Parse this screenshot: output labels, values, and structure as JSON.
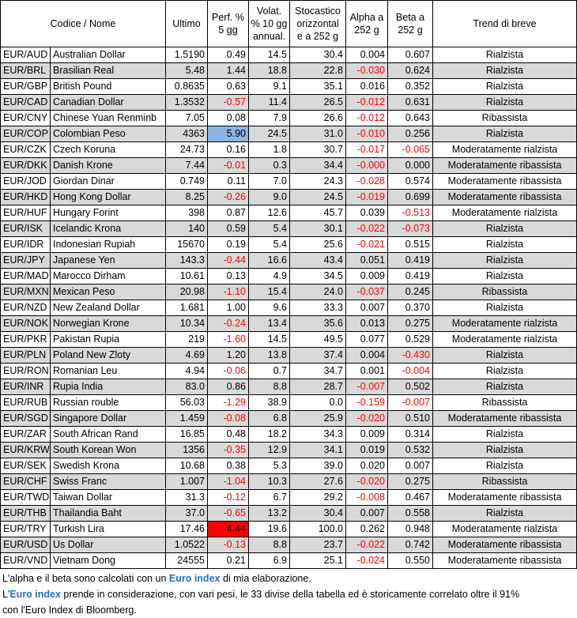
{
  "columns": {
    "name": "Codice / Nome",
    "last": "Ultimo",
    "perf_l1": "Perf. %",
    "perf_l2": "5 gg",
    "vol_l1": "Volat.",
    "vol_l2": "% 10 gg",
    "vol_l3": "annual.",
    "stoc_l1": "Stocastico",
    "stoc_l2": "orizzontal",
    "stoc_l3": "e a 252 g",
    "alpha_l1": "Alpha a",
    "alpha_l2": "252 g",
    "beta_l1": "Beta a",
    "beta_l2": "252 g",
    "trend": "Trend di breve"
  },
  "rows": [
    {
      "code": "EUR/AUD",
      "name": "Australian Dollar",
      "last": "1.5190",
      "perf": "0.49",
      "vol": "14.5",
      "stoc": "30.4",
      "alpha": "0.004",
      "beta": "0.607",
      "trend": "Rialzista"
    },
    {
      "code": "EUR/BRL",
      "name": "Brasilian Real",
      "last": "5.48",
      "perf": "1.44",
      "vol": "18.8",
      "stoc": "22.8",
      "alpha": "-0.030",
      "beta": "0.624",
      "trend": "Rialzista"
    },
    {
      "code": "EUR/GBP",
      "name": "British Pound",
      "last": "0.8635",
      "perf": "0.63",
      "vol": "9.1",
      "stoc": "35.1",
      "alpha": "0.016",
      "beta": "0.352",
      "trend": "Rialzista"
    },
    {
      "code": "EUR/CAD",
      "name": "Canadian Dollar",
      "last": "1.3532",
      "perf": "-0.57",
      "vol": "11.4",
      "stoc": "26.5",
      "alpha": "-0.012",
      "beta": "0.631",
      "trend": "Rialzista"
    },
    {
      "code": "EUR/CNY",
      "name": "Chinese Yuan Renminb",
      "last": "7.05",
      "perf": "0.08",
      "vol": "7.9",
      "stoc": "26.6",
      "alpha": "-0.012",
      "beta": "0.643",
      "trend": "Ribassista"
    },
    {
      "code": "EUR/COP",
      "name": "Colombian Peso",
      "last": "4363",
      "perf": "5.90",
      "vol": "24.5",
      "stoc": "31.0",
      "alpha": "-0.010",
      "beta": "0.256",
      "trend": "Rialzista",
      "perf_hl": "blue"
    },
    {
      "code": "EUR/CZK",
      "name": "Czech Koruna",
      "last": "24.73",
      "perf": "0.16",
      "vol": "1.8",
      "stoc": "30.7",
      "alpha": "-0.017",
      "beta": "-0.065",
      "trend": "Moderatamente rialzista"
    },
    {
      "code": "EUR/DKK",
      "name": "Danish Krone",
      "last": "7.44",
      "perf": "-0.01",
      "vol": "0.3",
      "stoc": "34.4",
      "alpha": "-0.000",
      "beta": "0.000",
      "trend": "Moderatamente ribassista"
    },
    {
      "code": "EUR/JOD",
      "name": "Giordan Dinar",
      "last": "0.749",
      "perf": "0.11",
      "vol": "7.0",
      "stoc": "24.3",
      "alpha": "-0.028",
      "beta": "0.574",
      "trend": "Moderatamente ribassista"
    },
    {
      "code": "EUR/HKD",
      "name": "Hong Kong Dollar",
      "last": "8.25",
      "perf": "-0.26",
      "vol": "9.0",
      "stoc": "24.5",
      "alpha": "-0.019",
      "beta": "0.699",
      "trend": "Moderatamente ribassista"
    },
    {
      "code": "EUR/HUF",
      "name": "Hungary Forint",
      "last": "398",
      "perf": "0.87",
      "vol": "12.6",
      "stoc": "45.7",
      "alpha": "0.039",
      "beta": "-0.513",
      "trend": "Moderatamente rialzista"
    },
    {
      "code": "EUR/ISK",
      "name": "Icelandic Krona",
      "last": "140",
      "perf": "0.59",
      "vol": "5.4",
      "stoc": "30.1",
      "alpha": "-0.022",
      "beta": "-0.073",
      "trend": "Rialzista"
    },
    {
      "code": "EUR/IDR",
      "name": "Indonesian Rupiah",
      "last": "15670",
      "perf": "0.19",
      "vol": "5.4",
      "stoc": "25.6",
      "alpha": "-0.021",
      "beta": "0.515",
      "trend": "Rialzista"
    },
    {
      "code": "EUR/JPY",
      "name": "Japanese Yen",
      "last": "143.3",
      "perf": "-0.44",
      "vol": "16.6",
      "stoc": "43.4",
      "alpha": "0.051",
      "beta": "0.419",
      "trend": "Rialzista"
    },
    {
      "code": "EUR/MAD",
      "name": "Marocco Dirham",
      "last": "10.61",
      "perf": "0.13",
      "vol": "4.9",
      "stoc": "34.5",
      "alpha": "0.009",
      "beta": "0.419",
      "trend": "Rialzista"
    },
    {
      "code": "EUR/MXN",
      "name": "Mexican Peso",
      "last": "20.98",
      "perf": "-1.10",
      "vol": "15.4",
      "stoc": "24.0",
      "alpha": "-0.037",
      "beta": "0.245",
      "trend": "Ribassista"
    },
    {
      "code": "EUR/NZD",
      "name": "New Zealand Dollar",
      "last": "1.681",
      "perf": "1.00",
      "vol": "9.6",
      "stoc": "33.3",
      "alpha": "0.007",
      "beta": "0.370",
      "trend": "Rialzista"
    },
    {
      "code": "EUR/NOK",
      "name": "Norwegian Krone",
      "last": "10.34",
      "perf": "-0.24",
      "vol": "13.4",
      "stoc": "35.6",
      "alpha": "0.013",
      "beta": "0.275",
      "trend": "Moderatamente rialzista"
    },
    {
      "code": "EUR/PKR",
      "name": "Pakistan Rupia",
      "last": "219",
      "perf": "-1.60",
      "vol": "14.5",
      "stoc": "49.5",
      "alpha": "0.077",
      "beta": "0.529",
      "trend": "Moderatamente rialzista"
    },
    {
      "code": "EUR/PLN",
      "name": "Poland New Zloty",
      "last": "4.69",
      "perf": "1.20",
      "vol": "13.8",
      "stoc": "37.4",
      "alpha": "0.004",
      "beta": "-0.430",
      "trend": "Rialzista"
    },
    {
      "code": "EUR/RON",
      "name": "Romanian Leu",
      "last": "4.94",
      "perf": "-0.06",
      "vol": "0.7",
      "stoc": "34.7",
      "alpha": "0.001",
      "beta": "-0.004",
      "trend": "Rialzista"
    },
    {
      "code": "EUR/INR",
      "name": "Rupia India",
      "last": "83.0",
      "perf": "0.86",
      "vol": "8.8",
      "stoc": "28.7",
      "alpha": "-0.007",
      "beta": "0.502",
      "trend": "Rialzista"
    },
    {
      "code": "EUR/RUB",
      "name": "Russian rouble",
      "last": "56.03",
      "perf": "-1.29",
      "vol": "38.9",
      "stoc": "0.0",
      "alpha": "-0.159",
      "beta": "-0.007",
      "trend": "Ribassista"
    },
    {
      "code": "EUR/SGD",
      "name": "Singapore Dollar",
      "last": "1.459",
      "perf": "-0.08",
      "vol": "6.8",
      "stoc": "25.9",
      "alpha": "-0.020",
      "beta": "0.510",
      "trend": "Moderatamente ribassista"
    },
    {
      "code": "EUR/ZAR",
      "name": "South African Rand",
      "last": "16.85",
      "perf": "0.48",
      "vol": "18.2",
      "stoc": "34.3",
      "alpha": "0.009",
      "beta": "0.314",
      "trend": "Rialzista"
    },
    {
      "code": "EUR/KRW",
      "name": "South Korean Won",
      "last": "1356",
      "perf": "-0.35",
      "vol": "12.9",
      "stoc": "34.1",
      "alpha": "0.019",
      "beta": "0.532",
      "trend": "Rialzista"
    },
    {
      "code": "EUR/SEK",
      "name": "Swedish Krona",
      "last": "10.68",
      "perf": "0.38",
      "vol": "5.3",
      "stoc": "39.0",
      "alpha": "0.020",
      "beta": "0.007",
      "trend": "Rialzista"
    },
    {
      "code": "EUR/CHF",
      "name": "Swiss Franc",
      "last": "1.007",
      "perf": "-1.04",
      "vol": "10.3",
      "stoc": "27.6",
      "alpha": "-0.020",
      "beta": "0.275",
      "trend": "Ribassista"
    },
    {
      "code": "EUR/TWD",
      "name": "Taiwan Dollar",
      "last": "31.3",
      "perf": "-0.12",
      "vol": "6.7",
      "stoc": "29.2",
      "alpha": "-0.008",
      "beta": "0.467",
      "trend": "Moderatamente ribassista"
    },
    {
      "code": "EUR/THB",
      "name": "Thailandia Baht",
      "last": "37.0",
      "perf": "-0.65",
      "vol": "13.2",
      "stoc": "30.4",
      "alpha": "0.007",
      "beta": "0.558",
      "trend": "Rialzista"
    },
    {
      "code": "EUR/TRY",
      "name": "Turkish Lira",
      "last": "17.46",
      "perf": "-4.44",
      "vol": "19.6",
      "stoc": "100.0",
      "alpha": "0.262",
      "beta": "0.948",
      "trend": "Moderatamente rialzista",
      "perf_hl": "red"
    },
    {
      "code": "EUR/USD",
      "name": "Us Dollar",
      "last": "1.0522",
      "perf": "-0.13",
      "vol": "8.8",
      "stoc": "23.7",
      "alpha": "-0.022",
      "beta": "0.742",
      "trend": "Moderatamente ribassista"
    },
    {
      "code": "EUR/VND",
      "name": "Vietnam Dong",
      "last": "24555",
      "perf": "0.21",
      "vol": "6.9",
      "stoc": "25.1",
      "alpha": "-0.024",
      "beta": "0.550",
      "trend": "Moderatamente ribassista"
    }
  ],
  "notes": {
    "line1_pre": "L'alpha e il beta sono calcolati con un ",
    "line1_link": "Euro index",
    "line1_post": " di mia elaborazione.",
    "line2_pre": "L'",
    "line2_link": "Euro index",
    "line2_post": " prende in considerazione, con vari pesi, le 33 divise della tabella ed è storicamente correlato oltre il 91%",
    "line3": "con l'Euro Index di Bloomberg."
  },
  "colors": {
    "negative": "#ff0000",
    "accent": "#1f6fc6",
    "stripe": "#d9d9d9",
    "highlight_blue": "#8db4e2",
    "highlight_red": "#ff0000"
  }
}
